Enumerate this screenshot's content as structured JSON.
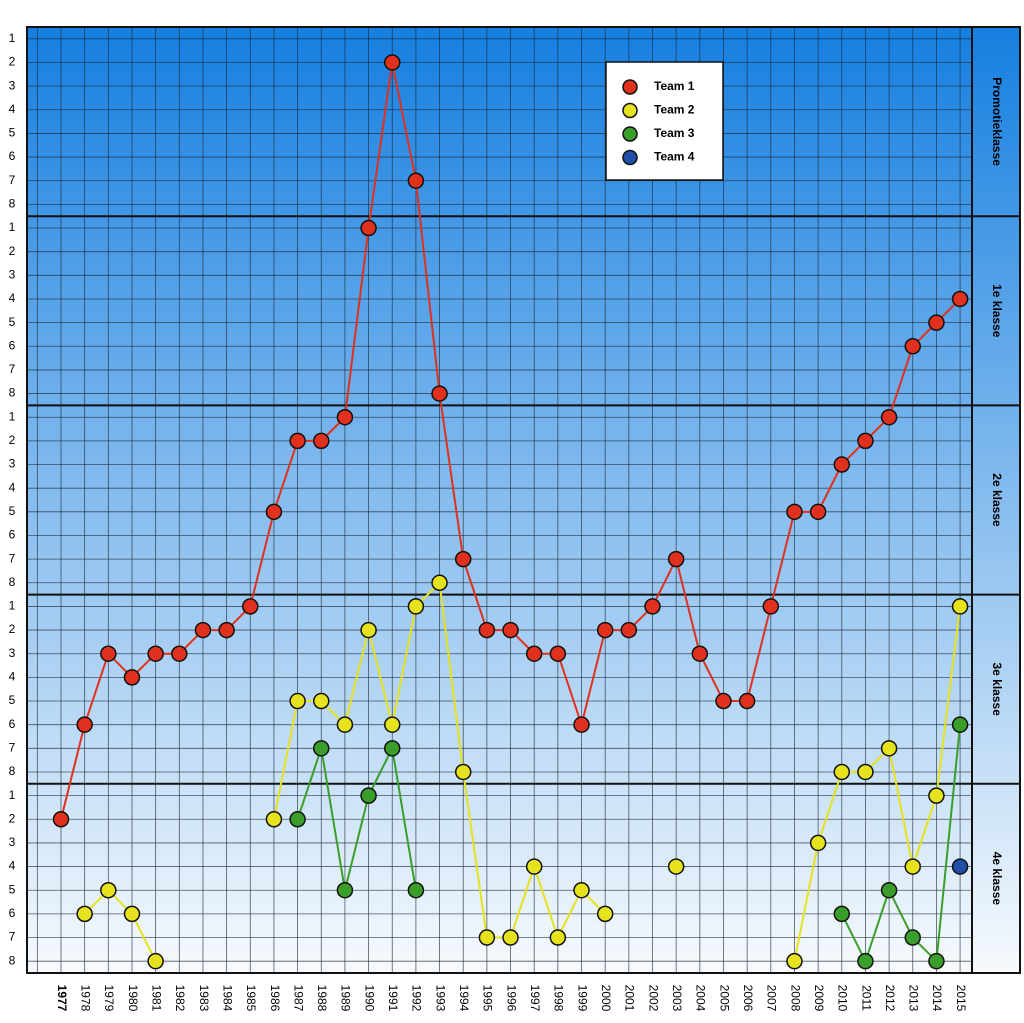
{
  "chart_data": {
    "type": "line",
    "categories": [
      "1977",
      "1978",
      "1979",
      "1980",
      "1981",
      "1982",
      "1983",
      "1984",
      "1985",
      "1986",
      "1987",
      "1988",
      "1989",
      "1990",
      "1991",
      "1992",
      "1993",
      "1994",
      "1995",
      "1996",
      "1997",
      "1998",
      "1999",
      "2000",
      "2001",
      "2002",
      "2003",
      "2004",
      "2005",
      "2006",
      "2007",
      "2008",
      "2009",
      "2010",
      "2011",
      "2012",
      "2013",
      "2014",
      "2015"
    ],
    "series": [
      {
        "name": "Team 1",
        "color": "#e0301e",
        "values": [
          34,
          30,
          27,
          28,
          27,
          27,
          26,
          26,
          25,
          21,
          18,
          18,
          17,
          9,
          2,
          7,
          16,
          23,
          26,
          26,
          27,
          27,
          30,
          26,
          26,
          25,
          23,
          27,
          29,
          29,
          25,
          21,
          21,
          19,
          18,
          17,
          14,
          13,
          12
        ]
      },
      {
        "name": "Team 2",
        "color": "#e6e21e",
        "values": [
          null,
          38,
          37,
          38,
          40,
          null,
          null,
          null,
          null,
          34,
          29,
          29,
          30,
          26,
          30,
          25,
          24,
          32,
          39,
          39,
          36,
          39,
          37,
          38,
          null,
          null,
          36,
          null,
          null,
          null,
          null,
          40,
          35,
          32,
          32,
          31,
          36,
          33,
          25
        ]
      },
      {
        "name": "Team 3",
        "color": "#3a9e2a",
        "values": [
          null,
          null,
          null,
          null,
          null,
          null,
          null,
          null,
          null,
          null,
          34,
          31,
          37,
          33,
          31,
          37,
          null,
          null,
          null,
          null,
          null,
          null,
          null,
          null,
          null,
          null,
          null,
          null,
          null,
          null,
          null,
          null,
          null,
          38,
          40,
          37,
          39,
          40,
          30
        ]
      },
      {
        "name": "Team 4",
        "color": "#1f4fa8",
        "values": [
          null,
          null,
          null,
          null,
          null,
          null,
          null,
          null,
          null,
          null,
          null,
          null,
          null,
          null,
          null,
          null,
          null,
          null,
          null,
          null,
          null,
          null,
          null,
          null,
          null,
          null,
          null,
          null,
          null,
          null,
          null,
          null,
          null,
          null,
          null,
          null,
          null,
          null,
          36
        ]
      }
    ],
    "ylim": [
      0.5,
      40.5
    ],
    "y_inverted": true,
    "yticks": [
      {
        "value": 1,
        "label": "1"
      },
      {
        "value": 2,
        "label": "2"
      },
      {
        "value": 3,
        "label": "3"
      },
      {
        "value": 4,
        "label": "4"
      },
      {
        "value": 5,
        "label": "5"
      },
      {
        "value": 6,
        "label": "6"
      },
      {
        "value": 7,
        "label": "7"
      },
      {
        "value": 8,
        "label": "8"
      },
      {
        "value": 9,
        "label": "1"
      },
      {
        "value": 10,
        "label": "2"
      },
      {
        "value": 11,
        "label": "3"
      },
      {
        "value": 12,
        "label": "4"
      },
      {
        "value": 13,
        "label": "5"
      },
      {
        "value": 14,
        "label": "6"
      },
      {
        "value": 15,
        "label": "7"
      },
      {
        "value": 16,
        "label": "8"
      },
      {
        "value": 17,
        "label": "1"
      },
      {
        "value": 18,
        "label": "2"
      },
      {
        "value": 19,
        "label": "3"
      },
      {
        "value": 20,
        "label": "4"
      },
      {
        "value": 21,
        "label": "5"
      },
      {
        "value": 22,
        "label": "6"
      },
      {
        "value": 23,
        "label": "7"
      },
      {
        "value": 24,
        "label": "8"
      },
      {
        "value": 25,
        "label": "1"
      },
      {
        "value": 26,
        "label": "2"
      },
      {
        "value": 27,
        "label": "3"
      },
      {
        "value": 28,
        "label": "4"
      },
      {
        "value": 29,
        "label": "5"
      },
      {
        "value": 30,
        "label": "6"
      },
      {
        "value": 31,
        "label": "7"
      },
      {
        "value": 32,
        "label": "8"
      },
      {
        "value": 33,
        "label": "1"
      },
      {
        "value": 34,
        "label": "2"
      },
      {
        "value": 35,
        "label": "3"
      },
      {
        "value": 36,
        "label": "4"
      },
      {
        "value": 37,
        "label": "5"
      },
      {
        "value": 38,
        "label": "6"
      },
      {
        "value": 39,
        "label": "7"
      },
      {
        "value": 40,
        "label": "8"
      }
    ],
    "leagues": [
      {
        "name": "Promotieklasse",
        "range": [
          0.5,
          8.5
        ]
      },
      {
        "name": "1e klasse",
        "range": [
          8.5,
          16.5
        ]
      },
      {
        "name": "2e klasse",
        "range": [
          16.5,
          24.5
        ]
      },
      {
        "name": "3e klasse",
        "range": [
          24.5,
          32.5
        ]
      },
      {
        "name": "4e klasse",
        "range": [
          32.5,
          40.5
        ]
      }
    ],
    "grid": true,
    "legend": "top-right"
  }
}
